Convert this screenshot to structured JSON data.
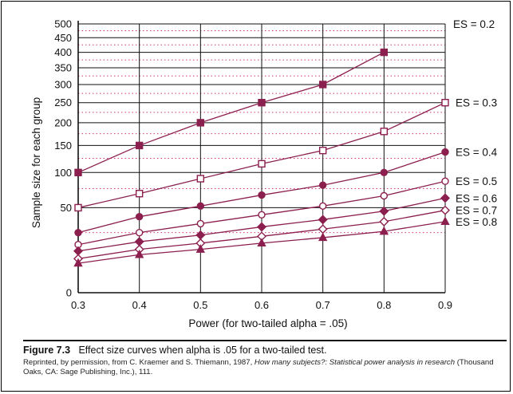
{
  "chart_data": {
    "type": "line",
    "title": "",
    "xlabel": "Power (for two-tailed alpha = .05)",
    "ylabel": "Sample size for each group",
    "x": [
      0.3,
      0.4,
      0.5,
      0.6,
      0.7,
      0.8,
      0.9
    ],
    "xticks": [
      "0.3",
      "0.4",
      "0.5",
      "0.6",
      "0.7",
      "0.8",
      "0.9"
    ],
    "yticks": [
      {
        "value": 0,
        "label": "0"
      },
      {
        "value": 50,
        "label": "50"
      },
      {
        "value": 100,
        "label": "100"
      },
      {
        "value": 150,
        "label": "150"
      },
      {
        "value": 200,
        "label": "200"
      },
      {
        "value": 250,
        "label": "250"
      },
      {
        "value": 300,
        "label": "300"
      },
      {
        "value": 350,
        "label": "350"
      },
      {
        "value": 400,
        "label": "400"
      },
      {
        "value": 450,
        "label": "450"
      },
      {
        "value": 500,
        "label": "500"
      }
    ],
    "xlim": [
      0.3,
      0.9
    ],
    "ylim": [
      0,
      500
    ],
    "y_scale": "square-root",
    "grid": true,
    "line_color": "#8b1f4e",
    "series": [
      {
        "name": "ES = 0.2",
        "marker": "square-filled",
        "values": [
          100,
          150,
          200,
          250,
          300,
          400,
          null
        ]
      },
      {
        "name": "ES = 0.3",
        "marker": "square-open",
        "values": [
          50,
          68,
          90,
          115,
          140,
          180,
          250
        ]
      },
      {
        "name": "ES = 0.4",
        "marker": "circle-filled",
        "values": [
          25,
          40,
          52,
          66,
          80,
          100,
          137
        ]
      },
      {
        "name": "ES = 0.5",
        "marker": "circle-open",
        "values": [
          16,
          25,
          33,
          42,
          52,
          65,
          86
        ]
      },
      {
        "name": "ES = 0.6",
        "marker": "diamond-filled",
        "values": [
          12,
          18,
          23,
          30,
          37,
          46,
          62
        ]
      },
      {
        "name": "ES = 0.7",
        "marker": "diamond-open",
        "values": [
          8,
          13,
          17,
          22,
          28,
          35,
          47
        ]
      },
      {
        "name": "ES = 0.8",
        "marker": "triangle-filled",
        "values": [
          6,
          10,
          13,
          17,
          21,
          26,
          35
        ]
      }
    ]
  },
  "caption": {
    "figure_label": "Figure 7.3",
    "text": "Effect size curves when alpha is .05 for a two-tailed test.",
    "credit_prefix": "Reprinted, by permission, from C. Kraemer and S. Thiemann, 1987, ",
    "credit_title": "How many subjects?: Statistical power analysis in research",
    "credit_suffix": " (Thousand Oaks, CA: Sage Publishing, Inc.), 111."
  }
}
